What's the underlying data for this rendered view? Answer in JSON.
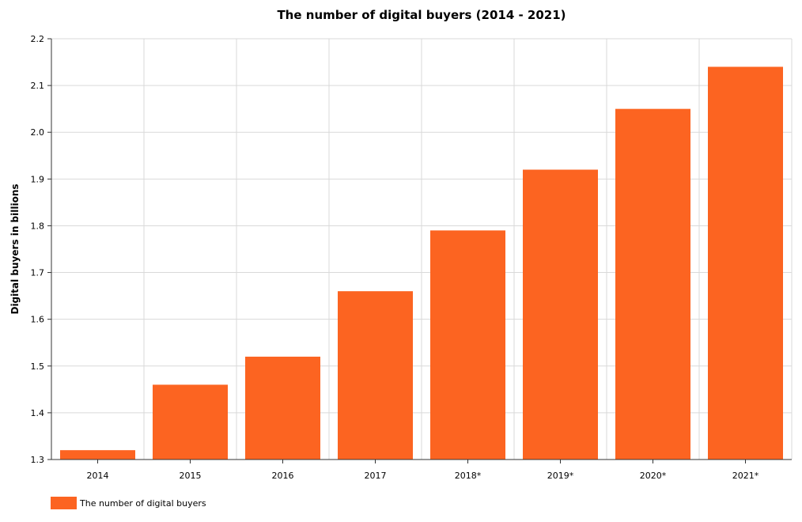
{
  "chart_data": {
    "type": "bar",
    "title": "The number of digital buyers (2014 - 2021)",
    "xlabel": "",
    "ylabel": "Digital buyers in billions",
    "categories": [
      "2014",
      "2015",
      "2016",
      "2017",
      "2018*",
      "2019*",
      "2020*",
      "2021*"
    ],
    "series": [
      {
        "name": "The number of digital buyers",
        "values": [
          1.32,
          1.46,
          1.52,
          1.66,
          1.79,
          1.92,
          2.05,
          2.14
        ]
      }
    ],
    "ylim": [
      1.3,
      2.2
    ],
    "yticks": [
      "1.3",
      "1.4",
      "1.5",
      "1.6",
      "1.7",
      "1.8",
      "1.9",
      "2.0",
      "2.1",
      "2.2"
    ],
    "grid": true,
    "legend_position": "bottom-left",
    "colors": {
      "bar": "#fc6421",
      "grid": "#d9d9d9",
      "axis": "#333333"
    }
  }
}
